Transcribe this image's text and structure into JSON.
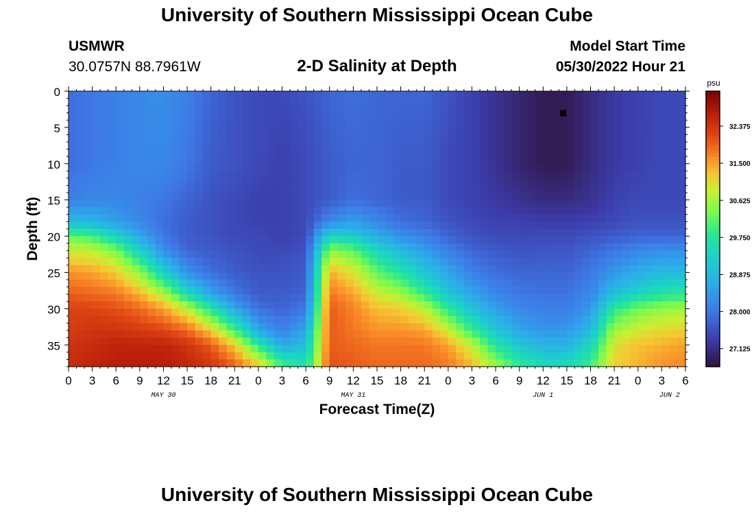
{
  "header": {
    "title": "University of Southern Mississippi Ocean Cube",
    "station": "USMWR",
    "coords": "30.0757N  88.7961W",
    "subtitle": "2-D Salinity at Depth",
    "model_label": "Model Start Time",
    "model_time": "05/30/2022 Hour 21",
    "bottom_title": "University of Southern Mississippi Ocean Cube"
  },
  "chart_data": {
    "type": "heatmap",
    "title": "2-D Salinity at Depth",
    "xlabel": "Forecast Time(Z)",
    "ylabel": "Depth (ft)",
    "x_unit": "hours since 05/30 00Z",
    "xlim": [
      0,
      78
    ],
    "ylim": [
      0,
      38
    ],
    "y_inverted": true,
    "x_ticks": [
      0,
      3,
      6,
      9,
      12,
      15,
      18,
      21,
      24,
      27,
      30,
      33,
      36,
      39,
      42,
      45,
      48,
      51,
      54,
      57,
      60,
      63,
      66,
      69,
      72,
      75,
      78
    ],
    "x_tick_labels": [
      "0",
      "3",
      "6",
      "9",
      "12",
      "15",
      "18",
      "21",
      "0",
      "3",
      "6",
      "9",
      "12",
      "15",
      "18",
      "21",
      "0",
      "3",
      "6",
      "9",
      "12",
      "15",
      "18",
      "21",
      "0",
      "3",
      "6"
    ],
    "y_ticks": [
      0,
      5,
      10,
      15,
      20,
      25,
      30,
      35
    ],
    "y_tick_labels": [
      "0",
      "5",
      "10",
      "15",
      "20",
      "25",
      "30",
      "35"
    ],
    "date_labels": [
      {
        "hour": 12,
        "label": "MAY 30"
      },
      {
        "hour": 36,
        "label": "MAY 31"
      },
      {
        "hour": 60,
        "label": "JUN 1"
      },
      {
        "hour": 76,
        "label": "JUN 2"
      }
    ],
    "colorbar": {
      "unit": "psu",
      "min": 26.7,
      "max": 33.2,
      "ticks": [
        27.125,
        28.0,
        28.875,
        29.75,
        30.625,
        31.5,
        32.375
      ],
      "tick_labels": [
        "27.125",
        "28.000",
        "28.875",
        "29.750",
        "30.625",
        "31.500",
        "32.375"
      ]
    },
    "marker": {
      "hour": 62.5,
      "depth": 3
    },
    "depth_profile": {
      "depth_ft": [
        0,
        10,
        15,
        18,
        20,
        22,
        25,
        28,
        30,
        33,
        35,
        38
      ],
      "times": [
        0,
        3,
        6,
        9,
        12,
        15,
        18,
        21,
        24,
        27,
        30,
        33,
        36,
        39,
        42,
        45,
        48,
        51,
        54,
        57,
        60,
        63,
        66,
        69,
        72,
        75,
        78
      ],
      "salinity_psu": [
        [
          27.9,
          27.9,
          28.1,
          28.9,
          30.2,
          30.9,
          31.6,
          32.0,
          32.2,
          32.3,
          32.4,
          32.5
        ],
        [
          28.0,
          28.0,
          28.2,
          28.8,
          30.0,
          30.8,
          31.5,
          31.9,
          32.2,
          32.4,
          32.5,
          32.6
        ],
        [
          28.1,
          28.1,
          28.2,
          28.5,
          29.3,
          30.4,
          31.2,
          31.8,
          32.1,
          32.4,
          32.6,
          32.7
        ],
        [
          28.2,
          28.2,
          28.1,
          28.2,
          28.6,
          29.3,
          30.5,
          31.4,
          31.9,
          32.3,
          32.6,
          32.7
        ],
        [
          28.3,
          28.2,
          28.0,
          27.9,
          28.0,
          28.3,
          29.3,
          30.7,
          31.5,
          32.2,
          32.6,
          32.7
        ],
        [
          28.1,
          28.0,
          27.8,
          27.7,
          27.7,
          27.8,
          28.3,
          29.5,
          30.8,
          31.9,
          32.4,
          32.6
        ],
        [
          27.8,
          27.7,
          27.6,
          27.6,
          27.6,
          27.7,
          27.9,
          28.6,
          29.7,
          31.2,
          32.0,
          32.4
        ],
        [
          27.6,
          27.6,
          27.5,
          27.5,
          27.5,
          27.6,
          27.7,
          28.0,
          28.6,
          30.0,
          31.2,
          32.0
        ],
        [
          27.5,
          27.5,
          27.4,
          27.4,
          27.5,
          27.5,
          27.6,
          27.7,
          27.9,
          28.6,
          29.8,
          31.3
        ],
        [
          27.5,
          27.4,
          27.4,
          27.4,
          27.4,
          27.5,
          27.6,
          27.7,
          27.8,
          28.1,
          28.6,
          30.1
        ],
        [
          27.6,
          27.5,
          27.5,
          27.5,
          27.5,
          27.6,
          27.7,
          27.8,
          28.0,
          28.6,
          29.0,
          29.6
        ],
        [
          27.8,
          27.7,
          27.7,
          28.2,
          29.4,
          30.5,
          31.4,
          31.8,
          32.0,
          32.0,
          32.0,
          32.1
        ],
        [
          27.9,
          27.8,
          27.9,
          28.5,
          29.2,
          30.2,
          31.0,
          31.5,
          31.7,
          31.8,
          31.9,
          32.0
        ],
        [
          27.8,
          27.8,
          27.8,
          28.2,
          28.7,
          29.4,
          30.2,
          30.9,
          31.3,
          31.6,
          31.8,
          31.9
        ],
        [
          27.8,
          27.7,
          27.7,
          27.9,
          28.3,
          28.9,
          29.7,
          30.6,
          31.2,
          31.6,
          31.8,
          31.9
        ],
        [
          27.8,
          27.7,
          27.7,
          27.8,
          28.1,
          28.5,
          29.1,
          29.9,
          30.8,
          31.5,
          31.8,
          31.9
        ],
        [
          27.6,
          27.5,
          27.5,
          27.6,
          27.8,
          28.1,
          28.6,
          29.1,
          29.8,
          30.9,
          31.5,
          31.8
        ],
        [
          27.4,
          27.4,
          27.4,
          27.5,
          27.6,
          27.8,
          28.1,
          28.6,
          29.0,
          29.9,
          30.8,
          31.4
        ],
        [
          27.2,
          27.2,
          27.3,
          27.4,
          27.5,
          27.7,
          27.9,
          28.2,
          28.5,
          29.1,
          29.7,
          30.6
        ],
        [
          27.0,
          27.0,
          27.2,
          27.4,
          27.5,
          27.6,
          27.8,
          28.0,
          28.2,
          28.6,
          29.1,
          29.9
        ],
        [
          26.85,
          26.85,
          27.1,
          27.35,
          27.5,
          27.65,
          27.8,
          27.95,
          28.1,
          28.4,
          28.8,
          29.5
        ],
        [
          26.85,
          26.85,
          27.1,
          27.35,
          27.5,
          27.65,
          27.8,
          27.95,
          28.1,
          28.4,
          28.8,
          29.5
        ],
        [
          27.1,
          27.1,
          27.2,
          27.4,
          27.6,
          27.8,
          28.0,
          28.2,
          28.4,
          28.9,
          29.4,
          30.0
        ],
        [
          27.3,
          27.3,
          27.4,
          27.5,
          27.7,
          28.0,
          28.4,
          29.0,
          29.8,
          30.6,
          31.0,
          31.2
        ],
        [
          27.4,
          27.4,
          27.5,
          27.6,
          27.8,
          28.2,
          28.7,
          29.4,
          30.3,
          30.9,
          31.3,
          31.4
        ],
        [
          27.5,
          27.5,
          27.5,
          27.6,
          27.8,
          28.3,
          28.9,
          29.7,
          30.5,
          31.1,
          31.4,
          31.6
        ],
        [
          27.5,
          27.5,
          27.5,
          27.6,
          27.8,
          28.3,
          28.9,
          29.8,
          30.6,
          31.2,
          31.5,
          31.7
        ]
      ]
    }
  }
}
